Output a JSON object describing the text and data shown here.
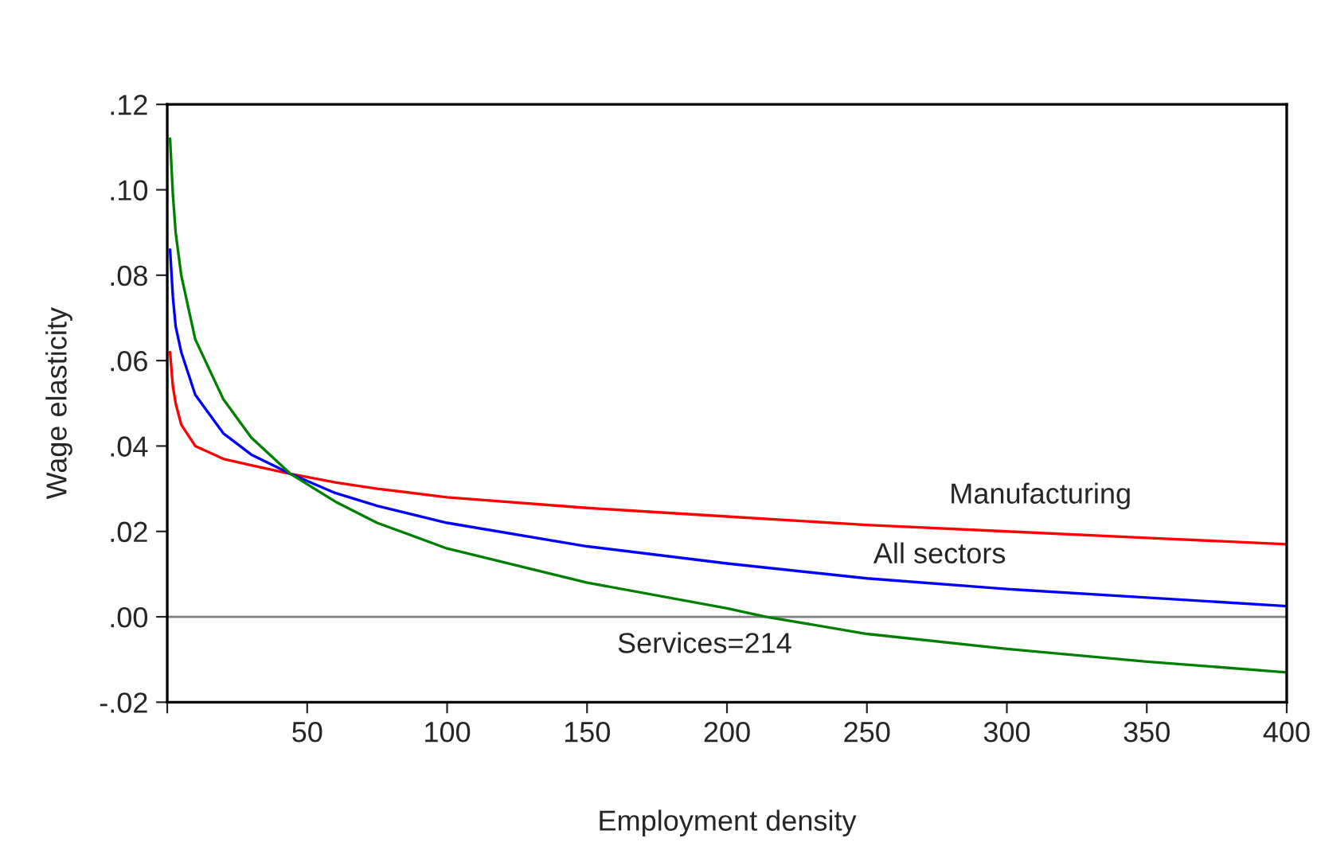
{
  "chart_data": {
    "type": "line",
    "xlabel": "Employment density",
    "ylabel": "Wage elasticity",
    "xlim": [
      0,
      400
    ],
    "ylim": [
      -0.02,
      0.12
    ],
    "xticks": [
      {
        "value": 0,
        "label": null
      },
      50,
      100,
      150,
      200,
      250,
      300,
      350,
      400
    ],
    "yticks": [
      {
        "value": -0.02,
        "label": "-.02"
      },
      {
        "value": 0,
        "label": ".00"
      },
      {
        "value": 0.02,
        "label": ".02"
      },
      {
        "value": 0.04,
        "label": ".04"
      },
      {
        "value": 0.06,
        "label": ".06"
      },
      {
        "value": 0.08,
        "label": ".08"
      },
      {
        "value": 0.1,
        "label": ".10"
      },
      {
        "value": 0.12,
        "label": ".12"
      }
    ],
    "grid": false,
    "legend": false,
    "marker": "none",
    "line_style": "solid",
    "ref_lines": [
      {
        "axis": "y",
        "value": 0,
        "color": "#808080"
      }
    ],
    "series": [
      {
        "name": "Manufacturing",
        "color": "#ff0000",
        "x": [
          1,
          2,
          3,
          5,
          10,
          20,
          30,
          44,
          60,
          75,
          100,
          150,
          200,
          250,
          300,
          350,
          400
        ],
        "values": [
          0.062,
          0.054,
          0.05,
          0.045,
          0.04,
          0.037,
          0.0355,
          0.0335,
          0.0315,
          0.03,
          0.028,
          0.0255,
          0.0235,
          0.0215,
          0.02,
          0.0185,
          0.017
        ]
      },
      {
        "name": "All sectors",
        "color": "#0000ff",
        "x": [
          1,
          2,
          3,
          5,
          10,
          20,
          30,
          44,
          60,
          75,
          100,
          150,
          200,
          250,
          300,
          350,
          400
        ],
        "values": [
          0.086,
          0.075,
          0.068,
          0.062,
          0.052,
          0.043,
          0.038,
          0.0335,
          0.029,
          0.026,
          0.022,
          0.0165,
          0.0125,
          0.009,
          0.0065,
          0.0045,
          0.0025
        ]
      },
      {
        "name": "Services=214",
        "color": "#008000",
        "x": [
          1,
          2,
          3,
          5,
          10,
          20,
          30,
          44,
          60,
          75,
          100,
          150,
          200,
          214,
          250,
          300,
          350,
          400
        ],
        "values": [
          0.112,
          0.099,
          0.09,
          0.08,
          0.065,
          0.051,
          0.042,
          0.0335,
          0.027,
          0.022,
          0.016,
          0.008,
          0.002,
          0,
          -0.004,
          -0.0075,
          -0.0105,
          -0.013
        ]
      }
    ]
  }
}
